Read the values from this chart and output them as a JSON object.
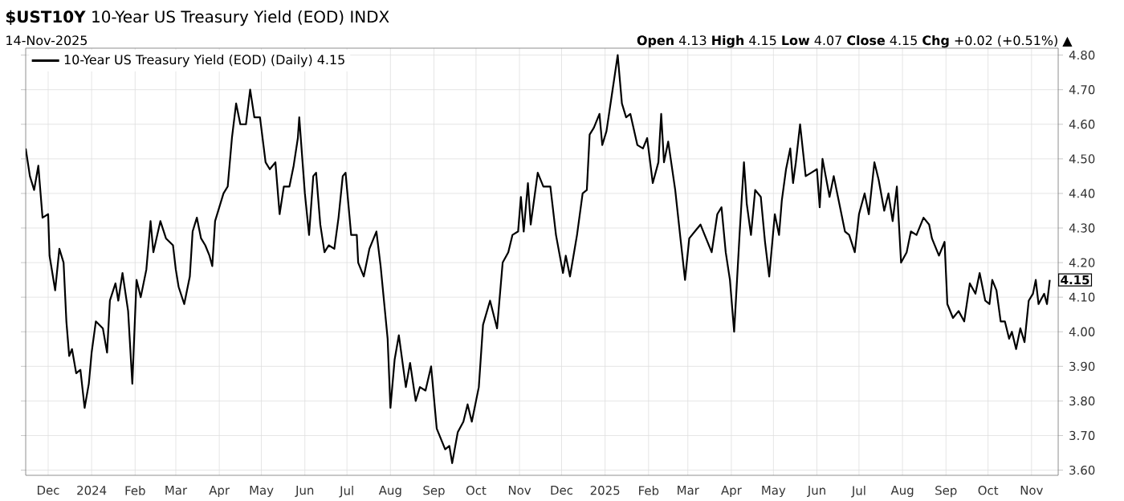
{
  "chart_data": {
    "type": "line",
    "title": "**$UST10Y** 10-Year US Treasury Yield (EOD) INDX",
    "subtitle": "14-Nov-2025",
    "annotations": [
      "**Open** 4.13  **High** 4.15  **Low** 4.07  **Close** 4.15  **Chg** +0.02 (+0.51%) ▲",
      {
        "text": "4.15",
        "y": 4.15
      }
    ],
    "legend": "top left",
    "grid": true,
    "xlim": [
      "2023-11-15",
      "2025-11-20"
    ],
    "ylim": [
      3.585,
      4.82
    ],
    "xticks": [
      {
        "value": "2023-12-01",
        "label": "Dec"
      },
      {
        "value": "2024-01-01",
        "label": "2024"
      },
      {
        "value": "2024-02-01",
        "label": "Feb"
      },
      {
        "value": "2024-03-01",
        "label": "Mar"
      },
      {
        "value": "2024-04-01",
        "label": "Apr"
      },
      {
        "value": "2024-05-01",
        "label": "May"
      },
      {
        "value": "2024-06-01",
        "label": "Jun"
      },
      {
        "value": "2024-07-01",
        "label": "Jul"
      },
      {
        "value": "2024-08-01",
        "label": "Aug"
      },
      {
        "value": "2024-09-01",
        "label": "Sep"
      },
      {
        "value": "2024-10-01",
        "label": "Oct"
      },
      {
        "value": "2024-11-01",
        "label": "Nov"
      },
      {
        "value": "2024-12-01",
        "label": "Dec"
      },
      {
        "value": "2025-01-01",
        "label": "2025"
      },
      {
        "value": "2025-02-01",
        "label": "Feb"
      },
      {
        "value": "2025-03-01",
        "label": "Mar"
      },
      {
        "value": "2025-04-01",
        "label": "Apr"
      },
      {
        "value": "2025-05-01",
        "label": "May"
      },
      {
        "value": "2025-06-01",
        "label": "Jun"
      },
      {
        "value": "2025-07-01",
        "label": "Jul"
      },
      {
        "value": "2025-08-01",
        "label": "Aug"
      },
      {
        "value": "2025-09-01",
        "label": "Sep"
      },
      {
        "value": "2025-10-01",
        "label": "Oct"
      },
      {
        "value": "2025-11-01",
        "label": "Nov"
      }
    ],
    "yticks": [
      {
        "value": 3.6,
        "label": "3.60"
      },
      {
        "value": 3.7,
        "label": "3.70"
      },
      {
        "value": 3.8,
        "label": "3.80"
      },
      {
        "value": 3.9,
        "label": "3.90"
      },
      {
        "value": 4.0,
        "label": "4.00"
      },
      {
        "value": 4.1,
        "label": "4.10"
      },
      {
        "value": 4.2,
        "label": "4.20"
      },
      {
        "value": 4.3,
        "label": "4.30"
      },
      {
        "value": 4.4,
        "label": "4.40"
      },
      {
        "value": 4.5,
        "label": "4.50"
      },
      {
        "value": 4.6,
        "label": "4.60"
      },
      {
        "value": 4.7,
        "label": "4.70"
      },
      {
        "value": 4.8,
        "label": "4.80"
      }
    ],
    "series": [
      {
        "name": "10-Year US Treasury Yield (EOD) (Daily) 4.15",
        "color": "#000000",
        "x": [
          "2023-11-15",
          "2023-11-18",
          "2023-11-21",
          "2023-11-24",
          "2023-11-27",
          "2023-12-01",
          "2023-12-02",
          "2023-12-06",
          "2023-12-09",
          "2023-12-12",
          "2023-12-14",
          "2023-12-16",
          "2023-12-18",
          "2023-12-21",
          "2023-12-24",
          "2023-12-27",
          "2023-12-30",
          "2024-01-01",
          "2024-01-04",
          "2024-01-09",
          "2024-01-12",
          "2024-01-14",
          "2024-01-18",
          "2024-01-20",
          "2024-01-23",
          "2024-01-27",
          "2024-01-30",
          "2024-02-02",
          "2024-02-05",
          "2024-02-09",
          "2024-02-12",
          "2024-02-14",
          "2024-02-19",
          "2024-02-23",
          "2024-02-28",
          "2024-03-01",
          "2024-03-03",
          "2024-03-07",
          "2024-03-11",
          "2024-03-13",
          "2024-03-16",
          "2024-03-19",
          "2024-03-22",
          "2024-03-25",
          "2024-03-27",
          "2024-03-29",
          "2024-04-01",
          "2024-04-04",
          "2024-04-07",
          "2024-04-10",
          "2024-04-13",
          "2024-04-16",
          "2024-04-20",
          "2024-04-23",
          "2024-04-26",
          "2024-04-30",
          "2024-05-04",
          "2024-05-07",
          "2024-05-11",
          "2024-05-14",
          "2024-05-17",
          "2024-05-21",
          "2024-05-24",
          "2024-05-27",
          "2024-05-28",
          "2024-06-01",
          "2024-06-04",
          "2024-06-07",
          "2024-06-09",
          "2024-06-12",
          "2024-06-15",
          "2024-06-18",
          "2024-06-22",
          "2024-06-25",
          "2024-06-28",
          "2024-06-30",
          "2024-07-04",
          "2024-07-08",
          "2024-07-09",
          "2024-07-13",
          "2024-07-17",
          "2024-07-22",
          "2024-07-25",
          "2024-07-30",
          "2024-08-01",
          "2024-08-04",
          "2024-08-07",
          "2024-08-12",
          "2024-08-15",
          "2024-08-19",
          "2024-08-22",
          "2024-08-26",
          "2024-08-30",
          "2024-09-03",
          "2024-09-09",
          "2024-09-12",
          "2024-09-14",
          "2024-09-18",
          "2024-09-22",
          "2024-09-25",
          "2024-09-28",
          "2024-10-01",
          "2024-10-03",
          "2024-10-06",
          "2024-10-11",
          "2024-10-16",
          "2024-10-20",
          "2024-10-24",
          "2024-10-27",
          "2024-10-31",
          "2024-11-02",
          "2024-11-04",
          "2024-11-07",
          "2024-11-09",
          "2024-11-14",
          "2024-11-18",
          "2024-11-23",
          "2024-11-27",
          "2024-12-02",
          "2024-12-04",
          "2024-12-07",
          "2024-12-12",
          "2024-12-16",
          "2024-12-19",
          "2024-12-21",
          "2024-12-24",
          "2024-12-28",
          "2024-12-30",
          "2025-01-02",
          "2025-01-06",
          "2025-01-10",
          "2025-01-13",
          "2025-01-16",
          "2025-01-19",
          "2025-01-24",
          "2025-01-28",
          "2025-01-31",
          "2025-02-04",
          "2025-02-08",
          "2025-02-10",
          "2025-02-12",
          "2025-02-15",
          "2025-02-20",
          "2025-02-24",
          "2025-02-27",
          "2025-03-02",
          "2025-03-06",
          "2025-03-10",
          "2025-03-13",
          "2025-03-18",
          "2025-03-22",
          "2025-03-25",
          "2025-03-28",
          "2025-03-31",
          "2025-04-03",
          "2025-04-07",
          "2025-04-10",
          "2025-04-12",
          "2025-04-15",
          "2025-04-18",
          "2025-04-22",
          "2025-04-25",
          "2025-04-28",
          "2025-05-02",
          "2025-05-05",
          "2025-05-07",
          "2025-05-10",
          "2025-05-13",
          "2025-05-15",
          "2025-05-17",
          "2025-05-20",
          "2025-05-24",
          "2025-05-28",
          "2025-06-01",
          "2025-06-03",
          "2025-06-05",
          "2025-06-10",
          "2025-06-13",
          "2025-06-16",
          "2025-06-21",
          "2025-06-24",
          "2025-06-28",
          "2025-07-01",
          "2025-07-05",
          "2025-07-08",
          "2025-07-12",
          "2025-07-15",
          "2025-07-19",
          "2025-07-22",
          "2025-07-25",
          "2025-07-28",
          "2025-07-31",
          "2025-08-04",
          "2025-08-07",
          "2025-08-11",
          "2025-08-16",
          "2025-08-20",
          "2025-08-22",
          "2025-08-27",
          "2025-08-31",
          "2025-09-02",
          "2025-09-06",
          "2025-09-10",
          "2025-09-14",
          "2025-09-18",
          "2025-09-22",
          "2025-09-25",
          "2025-09-29",
          "2025-10-02",
          "2025-10-04",
          "2025-10-07",
          "2025-10-10",
          "2025-10-13",
          "2025-10-16",
          "2025-10-18",
          "2025-10-21",
          "2025-10-24",
          "2025-10-27",
          "2025-10-30",
          "2025-11-02",
          "2025-11-04",
          "2025-11-06",
          "2025-11-10",
          "2025-11-12",
          "2025-11-14"
        ],
        "values": [
          4.53,
          4.45,
          4.41,
          4.48,
          4.33,
          4.34,
          4.22,
          4.12,
          4.24,
          4.2,
          4.03,
          3.93,
          3.95,
          3.88,
          3.89,
          3.78,
          3.85,
          3.94,
          4.03,
          4.01,
          3.94,
          4.09,
          4.14,
          4.09,
          4.17,
          4.06,
          3.85,
          4.15,
          4.1,
          4.18,
          4.32,
          4.23,
          4.32,
          4.27,
          4.25,
          4.18,
          4.13,
          4.08,
          4.16,
          4.29,
          4.33,
          4.27,
          4.25,
          4.22,
          4.19,
          4.32,
          4.36,
          4.4,
          4.42,
          4.56,
          4.66,
          4.6,
          4.6,
          4.7,
          4.62,
          4.62,
          4.49,
          4.47,
          4.49,
          4.34,
          4.42,
          4.42,
          4.48,
          4.56,
          4.62,
          4.4,
          4.28,
          4.45,
          4.46,
          4.31,
          4.23,
          4.25,
          4.24,
          4.33,
          4.45,
          4.46,
          4.28,
          4.28,
          4.2,
          4.16,
          4.24,
          4.29,
          4.19,
          3.98,
          3.78,
          3.92,
          3.99,
          3.84,
          3.91,
          3.8,
          3.84,
          3.83,
          3.9,
          3.72,
          3.66,
          3.67,
          3.62,
          3.71,
          3.74,
          3.79,
          3.74,
          3.8,
          3.84,
          4.02,
          4.09,
          4.01,
          4.2,
          4.23,
          4.28,
          4.29,
          4.39,
          4.29,
          4.43,
          4.31,
          4.46,
          4.42,
          4.42,
          4.28,
          4.17,
          4.22,
          4.16,
          4.28,
          4.4,
          4.41,
          4.57,
          4.59,
          4.63,
          4.54,
          4.58,
          4.69,
          4.8,
          4.66,
          4.62,
          4.63,
          4.54,
          4.53,
          4.56,
          4.43,
          4.49,
          4.63,
          4.49,
          4.55,
          4.41,
          4.26,
          4.15,
          4.27,
          4.29,
          4.31,
          4.28,
          4.23,
          4.34,
          4.36,
          4.23,
          4.15,
          4.0,
          4.29,
          4.49,
          4.37,
          4.28,
          4.41,
          4.39,
          4.26,
          4.16,
          4.34,
          4.28,
          4.38,
          4.47,
          4.53,
          4.43,
          4.49,
          4.6,
          4.45,
          4.46,
          4.47,
          4.36,
          4.5,
          4.39,
          4.45,
          4.39,
          4.29,
          4.28,
          4.23,
          4.34,
          4.4,
          4.34,
          4.49,
          4.44,
          4.35,
          4.4,
          4.32,
          4.42,
          4.2,
          4.23,
          4.29,
          4.28,
          4.33,
          4.31,
          4.27,
          4.22,
          4.26,
          4.08,
          4.04,
          4.06,
          4.03,
          4.14,
          4.11,
          4.17,
          4.09,
          4.08,
          4.15,
          4.12,
          4.03,
          4.03,
          3.98,
          4.0,
          3.95,
          4.01,
          3.97,
          4.09,
          4.11,
          4.15,
          4.08,
          4.11,
          4.08,
          4.15
        ]
      }
    ]
  }
}
